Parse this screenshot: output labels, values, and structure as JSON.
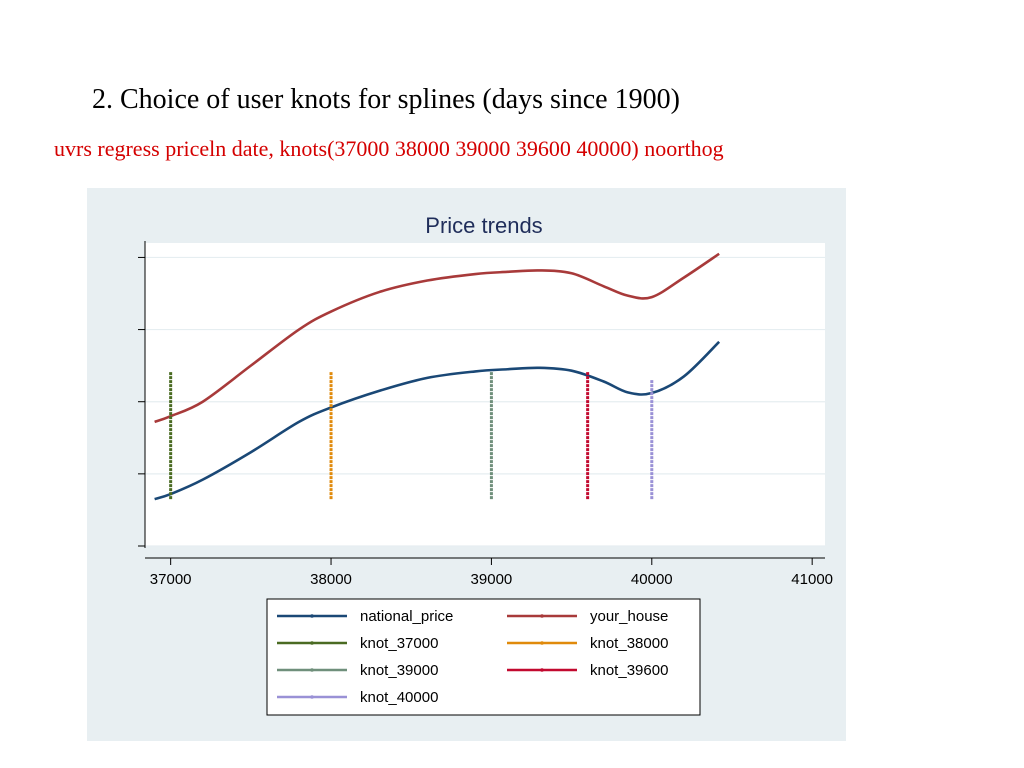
{
  "slide": {
    "title": "2. Choice of user knots for splines (days since 1900)",
    "command": "uvrs regress priceln date, knots(37000 38000 39000 39600 40000) noorthog"
  },
  "chart_data": {
    "type": "line",
    "title": "Price trends",
    "xlabel": "",
    "ylabel": "",
    "xlim": [
      36840,
      41080
    ],
    "ylim": [
      0,
      4.2
    ],
    "x_ticks": [
      "37000",
      "38000",
      "39000",
      "40000",
      "41000"
    ],
    "x_tick_values": [
      37000,
      38000,
      39000,
      40000,
      41000
    ],
    "y_tick_values": [
      0,
      1,
      2,
      3,
      4
    ],
    "y_tick_labels_shown": false,
    "grid": true,
    "legend_position": "bottom",
    "series": [
      {
        "name": "national_price",
        "color": "#1a4876",
        "x": [
          36900,
          37000,
          37200,
          37500,
          37800,
          38000,
          38300,
          38600,
          38900,
          39100,
          39300,
          39500,
          39700,
          39850,
          40000,
          40200,
          40420
        ],
        "y": [
          0.65,
          0.72,
          0.92,
          1.3,
          1.72,
          1.92,
          2.15,
          2.33,
          2.42,
          2.45,
          2.47,
          2.43,
          2.28,
          2.13,
          2.12,
          2.35,
          2.83
        ]
      },
      {
        "name": "your_house",
        "color": "#a83a3a",
        "x": [
          36900,
          37000,
          37200,
          37500,
          37800,
          38000,
          38300,
          38600,
          38900,
          39100,
          39300,
          39500,
          39700,
          39850,
          40000,
          40200,
          40420
        ],
        "y": [
          1.72,
          1.8,
          2.0,
          2.5,
          3.0,
          3.25,
          3.52,
          3.68,
          3.77,
          3.8,
          3.82,
          3.78,
          3.6,
          3.47,
          3.45,
          3.72,
          4.05
        ]
      },
      {
        "name": "knot_37000",
        "color": "#4a6b22",
        "x": [
          37000,
          37000
        ],
        "y": [
          0.65,
          2.42
        ]
      },
      {
        "name": "knot_38000",
        "color": "#e08a0b",
        "x": [
          38000,
          38000
        ],
        "y": [
          0.65,
          2.42
        ]
      },
      {
        "name": "knot_39000",
        "color": "#6f8f7b",
        "x": [
          39000,
          39000
        ],
        "y": [
          0.65,
          2.42
        ]
      },
      {
        "name": "knot_39600",
        "color": "#c2092f",
        "x": [
          39600,
          39600
        ],
        "y": [
          0.65,
          2.42
        ]
      },
      {
        "name": "knot_40000",
        "color": "#9a91d6",
        "x": [
          40000,
          40000
        ],
        "y": [
          0.65,
          2.3
        ]
      }
    ],
    "legend": {
      "columns": [
        [
          "national_price",
          "knot_37000",
          "knot_39000",
          "knot_40000"
        ],
        [
          "your_house",
          "knot_38000",
          "knot_39600"
        ]
      ]
    }
  }
}
